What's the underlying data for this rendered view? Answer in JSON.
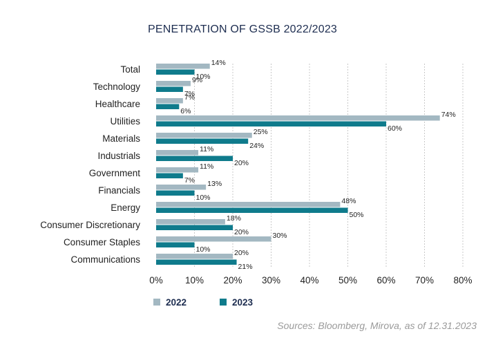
{
  "chart_data": {
    "type": "bar",
    "orientation": "horizontal",
    "title": "PENETRATION OF GSSB 2022/2023",
    "categories": [
      "Total",
      "Technology",
      "Healthcare",
      "Utilities",
      "Materials",
      "Industrials",
      "Government",
      "Financials",
      "Energy",
      "Consumer Discretionary",
      "Consumer Staples",
      "Communications"
    ],
    "series": [
      {
        "name": "2022",
        "color": "#a3b8c2",
        "values": [
          14,
          9,
          7,
          74,
          25,
          11,
          11,
          13,
          48,
          18,
          30,
          20
        ]
      },
      {
        "name": "2023",
        "color": "#0f7b8c",
        "values": [
          10,
          7,
          6,
          60,
          24,
          20,
          7,
          10,
          50,
          20,
          10,
          21
        ]
      }
    ],
    "xlim": [
      0,
      80
    ],
    "xticks": [
      0,
      10,
      20,
      30,
      40,
      50,
      60,
      70,
      80
    ],
    "tick_suffix": "%",
    "grid": true,
    "legend": "bottom-left"
  },
  "source": "Sources: Bloomberg, Mirova, as of 12.31.2023"
}
